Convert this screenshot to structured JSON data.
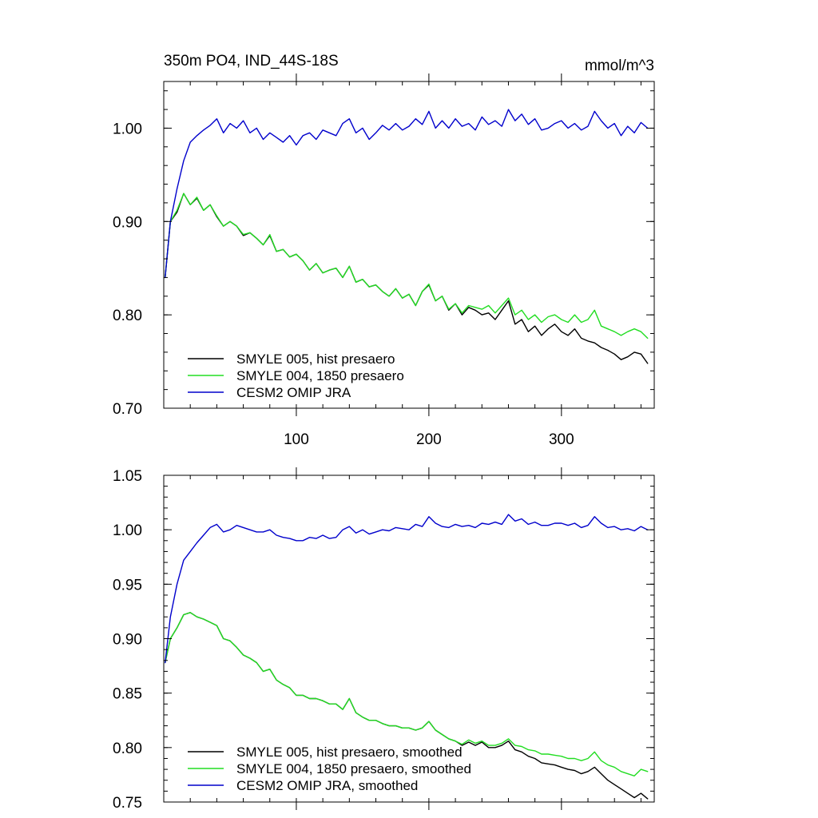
{
  "colors": {
    "hist": "#000000",
    "p1850": "#22dd22",
    "omip": "#0000cc"
  },
  "chart_data": [
    {
      "type": "line",
      "title": "350m PO4, IND_44S-18S",
      "units_label": "mmol/m^3",
      "xlim": [
        0,
        370
      ],
      "ylim": [
        0.7,
        1.05
      ],
      "xticks": [
        100,
        200,
        300
      ],
      "xtick_labels": [
        "100",
        "200",
        "300"
      ],
      "yticks": [
        0.7,
        0.8,
        0.9,
        1.0
      ],
      "ytick_labels": [
        "0.70",
        "0.80",
        "0.90",
        "1.00"
      ],
      "legend_position": "bottom-left",
      "series": [
        {
          "name": "SMYLE 005, hist presaero",
          "x": [
            1,
            5,
            10,
            15,
            20,
            25,
            30,
            35,
            40,
            45,
            50,
            55,
            60,
            65,
            70,
            75,
            80,
            85,
            90,
            95,
            100,
            105,
            110,
            115,
            120,
            125,
            130,
            135,
            140,
            145,
            150,
            155,
            160,
            165,
            170,
            175,
            180,
            185,
            190,
            195,
            200,
            205,
            210,
            215,
            220,
            225,
            230,
            235,
            240,
            245,
            250,
            255,
            260,
            265,
            270,
            275,
            280,
            285,
            290,
            295,
            300,
            305,
            310,
            315,
            320,
            325,
            330,
            335,
            340,
            345,
            350,
            355,
            360,
            365
          ],
          "y": [
            0.84,
            0.9,
            0.91,
            0.93,
            0.918,
            0.925,
            0.912,
            0.918,
            0.905,
            0.895,
            0.9,
            0.895,
            0.885,
            0.888,
            0.882,
            0.875,
            0.885,
            0.868,
            0.87,
            0.862,
            0.865,
            0.858,
            0.848,
            0.855,
            0.845,
            0.848,
            0.85,
            0.84,
            0.852,
            0.835,
            0.838,
            0.83,
            0.832,
            0.825,
            0.82,
            0.828,
            0.818,
            0.822,
            0.81,
            0.825,
            0.832,
            0.815,
            0.82,
            0.805,
            0.812,
            0.8,
            0.808,
            0.805,
            0.8,
            0.802,
            0.795,
            0.805,
            0.815,
            0.79,
            0.795,
            0.782,
            0.788,
            0.778,
            0.785,
            0.79,
            0.782,
            0.778,
            0.785,
            0.775,
            0.772,
            0.77,
            0.765,
            0.762,
            0.758,
            0.752,
            0.755,
            0.76,
            0.758,
            0.748
          ]
        },
        {
          "name": "SMYLE 004, 1850 presaero",
          "x": [
            1,
            5,
            10,
            15,
            20,
            25,
            30,
            35,
            40,
            45,
            50,
            55,
            60,
            65,
            70,
            75,
            80,
            85,
            90,
            95,
            100,
            105,
            110,
            115,
            120,
            125,
            130,
            135,
            140,
            145,
            150,
            155,
            160,
            165,
            170,
            175,
            180,
            185,
            190,
            195,
            200,
            205,
            210,
            215,
            220,
            225,
            230,
            235,
            240,
            245,
            250,
            255,
            260,
            265,
            270,
            275,
            280,
            285,
            290,
            295,
            300,
            305,
            310,
            315,
            320,
            325,
            330,
            335,
            340,
            345,
            350,
            355,
            360,
            365
          ],
          "y": [
            0.84,
            0.9,
            0.912,
            0.93,
            0.918,
            0.926,
            0.912,
            0.918,
            0.906,
            0.895,
            0.9,
            0.895,
            0.886,
            0.888,
            0.882,
            0.875,
            0.886,
            0.868,
            0.87,
            0.862,
            0.865,
            0.858,
            0.848,
            0.855,
            0.845,
            0.848,
            0.85,
            0.84,
            0.852,
            0.835,
            0.838,
            0.83,
            0.832,
            0.825,
            0.82,
            0.828,
            0.818,
            0.822,
            0.81,
            0.825,
            0.833,
            0.815,
            0.82,
            0.806,
            0.812,
            0.802,
            0.81,
            0.808,
            0.806,
            0.81,
            0.802,
            0.81,
            0.818,
            0.8,
            0.805,
            0.795,
            0.8,
            0.792,
            0.798,
            0.8,
            0.795,
            0.792,
            0.8,
            0.792,
            0.795,
            0.805,
            0.788,
            0.785,
            0.782,
            0.778,
            0.782,
            0.785,
            0.782,
            0.775
          ]
        },
        {
          "name": "CESM2 OMIP JRA",
          "x": [
            1,
            5,
            10,
            15,
            20,
            25,
            30,
            35,
            40,
            45,
            50,
            55,
            60,
            65,
            70,
            75,
            80,
            85,
            90,
            95,
            100,
            105,
            110,
            115,
            120,
            125,
            130,
            135,
            140,
            145,
            150,
            155,
            160,
            165,
            170,
            175,
            180,
            185,
            190,
            195,
            200,
            205,
            210,
            215,
            220,
            225,
            230,
            235,
            240,
            245,
            250,
            255,
            260,
            265,
            270,
            275,
            280,
            285,
            290,
            295,
            300,
            305,
            310,
            315,
            320,
            325,
            330,
            335,
            340,
            345,
            350,
            355,
            360,
            365
          ],
          "y": [
            0.84,
            0.9,
            0.935,
            0.965,
            0.985,
            0.992,
            0.998,
            1.003,
            1.01,
            0.995,
            1.005,
            1.0,
            1.008,
            0.995,
            1.0,
            0.988,
            0.995,
            0.99,
            0.985,
            0.992,
            0.982,
            0.992,
            0.995,
            0.988,
            0.998,
            0.995,
            0.992,
            1.005,
            1.01,
            0.995,
            1.0,
            0.988,
            0.995,
            1.003,
            0.998,
            1.005,
            0.998,
            1.002,
            1.01,
            1.004,
            1.018,
            1.0,
            1.008,
            1.0,
            1.01,
            1.002,
            1.005,
            0.998,
            1.012,
            1.004,
            1.008,
            1.002,
            1.02,
            1.008,
            1.015,
            1.004,
            1.01,
            0.998,
            1.0,
            1.005,
            1.008,
            1.0,
            1.005,
            0.998,
            1.002,
            1.018,
            1.008,
            1.0,
            1.005,
            0.992,
            1.002,
            0.995,
            1.006,
            1.0
          ]
        }
      ]
    },
    {
      "type": "line",
      "xlim": [
        0,
        370
      ],
      "ylim": [
        0.75,
        1.05
      ],
      "xticks": [
        100,
        200,
        300
      ],
      "yticks": [
        0.75,
        0.8,
        0.85,
        0.9,
        0.95,
        1.0,
        1.05
      ],
      "ytick_labels": [
        "0.75",
        "0.80",
        "0.85",
        "0.90",
        "0.95",
        "1.00",
        "1.05"
      ],
      "legend_position": "bottom-left",
      "series": [
        {
          "name": "SMYLE 005, hist presaero, smoothed",
          "x": [
            1,
            5,
            10,
            15,
            20,
            25,
            30,
            35,
            40,
            45,
            50,
            55,
            60,
            65,
            70,
            75,
            80,
            85,
            90,
            95,
            100,
            105,
            110,
            115,
            120,
            125,
            130,
            135,
            140,
            145,
            150,
            155,
            160,
            165,
            170,
            175,
            180,
            185,
            190,
            195,
            200,
            205,
            210,
            215,
            220,
            225,
            230,
            235,
            240,
            245,
            250,
            255,
            260,
            265,
            270,
            275,
            280,
            285,
            290,
            295,
            300,
            305,
            310,
            315,
            320,
            325,
            330,
            335,
            340,
            345,
            350,
            355,
            360,
            365
          ],
          "y": [
            0.878,
            0.9,
            0.91,
            0.922,
            0.924,
            0.92,
            0.918,
            0.915,
            0.912,
            0.9,
            0.898,
            0.892,
            0.885,
            0.882,
            0.878,
            0.87,
            0.872,
            0.862,
            0.858,
            0.855,
            0.848,
            0.848,
            0.845,
            0.845,
            0.843,
            0.84,
            0.84,
            0.835,
            0.845,
            0.832,
            0.828,
            0.825,
            0.825,
            0.822,
            0.82,
            0.82,
            0.818,
            0.818,
            0.816,
            0.818,
            0.824,
            0.816,
            0.812,
            0.808,
            0.806,
            0.802,
            0.805,
            0.802,
            0.805,
            0.8,
            0.8,
            0.802,
            0.806,
            0.798,
            0.796,
            0.792,
            0.79,
            0.786,
            0.785,
            0.784,
            0.782,
            0.78,
            0.779,
            0.776,
            0.778,
            0.782,
            0.776,
            0.77,
            0.766,
            0.762,
            0.758,
            0.754,
            0.758,
            0.753
          ]
        },
        {
          "name": "SMYLE 004, 1850 presaero, smoothed",
          "x": [
            1,
            5,
            10,
            15,
            20,
            25,
            30,
            35,
            40,
            45,
            50,
            55,
            60,
            65,
            70,
            75,
            80,
            85,
            90,
            95,
            100,
            105,
            110,
            115,
            120,
            125,
            130,
            135,
            140,
            145,
            150,
            155,
            160,
            165,
            170,
            175,
            180,
            185,
            190,
            195,
            200,
            205,
            210,
            215,
            220,
            225,
            230,
            235,
            240,
            245,
            250,
            255,
            260,
            265,
            270,
            275,
            280,
            285,
            290,
            295,
            300,
            305,
            310,
            315,
            320,
            325,
            330,
            335,
            340,
            345,
            350,
            355,
            360,
            365
          ],
          "y": [
            0.878,
            0.9,
            0.91,
            0.922,
            0.924,
            0.92,
            0.918,
            0.915,
            0.912,
            0.9,
            0.898,
            0.892,
            0.885,
            0.882,
            0.878,
            0.87,
            0.872,
            0.862,
            0.858,
            0.855,
            0.848,
            0.848,
            0.845,
            0.845,
            0.843,
            0.84,
            0.84,
            0.835,
            0.845,
            0.832,
            0.828,
            0.825,
            0.825,
            0.822,
            0.82,
            0.82,
            0.818,
            0.818,
            0.816,
            0.818,
            0.824,
            0.816,
            0.812,
            0.808,
            0.806,
            0.803,
            0.807,
            0.804,
            0.806,
            0.802,
            0.802,
            0.804,
            0.808,
            0.802,
            0.801,
            0.798,
            0.797,
            0.794,
            0.794,
            0.793,
            0.792,
            0.79,
            0.79,
            0.788,
            0.79,
            0.796,
            0.788,
            0.784,
            0.782,
            0.778,
            0.776,
            0.774,
            0.78,
            0.778
          ]
        },
        {
          "name": "CESM2 OMIP JRA, smoothed",
          "x": [
            1,
            5,
            10,
            15,
            20,
            25,
            30,
            35,
            40,
            45,
            50,
            55,
            60,
            65,
            70,
            75,
            80,
            85,
            90,
            95,
            100,
            105,
            110,
            115,
            120,
            125,
            130,
            135,
            140,
            145,
            150,
            155,
            160,
            165,
            170,
            175,
            180,
            185,
            190,
            195,
            200,
            205,
            210,
            215,
            220,
            225,
            230,
            235,
            240,
            245,
            250,
            255,
            260,
            265,
            270,
            275,
            280,
            285,
            290,
            295,
            300,
            305,
            310,
            315,
            320,
            325,
            330,
            335,
            340,
            345,
            350,
            355,
            360,
            365
          ],
          "y": [
            0.878,
            0.92,
            0.95,
            0.972,
            0.98,
            0.988,
            0.995,
            1.002,
            1.005,
            0.998,
            1.0,
            1.004,
            1.002,
            1.0,
            0.998,
            0.998,
            1.0,
            0.995,
            0.993,
            0.992,
            0.99,
            0.99,
            0.993,
            0.992,
            0.995,
            0.992,
            0.993,
            1.0,
            1.003,
            0.997,
            1.0,
            0.996,
            0.998,
            1.0,
            0.999,
            1.002,
            1.001,
            1.0,
            1.005,
            1.003,
            1.012,
            1.006,
            1.003,
            1.002,
            1.005,
            1.003,
            1.004,
            1.002,
            1.006,
            1.005,
            1.007,
            1.005,
            1.014,
            1.008,
            1.01,
            1.005,
            1.007,
            1.004,
            1.004,
            1.006,
            1.006,
            1.004,
            1.006,
            1.002,
            1.004,
            1.012,
            1.006,
            1.002,
            1.003,
            1.0,
            1.001,
            0.999,
            1.003,
            1.0
          ]
        }
      ]
    }
  ]
}
